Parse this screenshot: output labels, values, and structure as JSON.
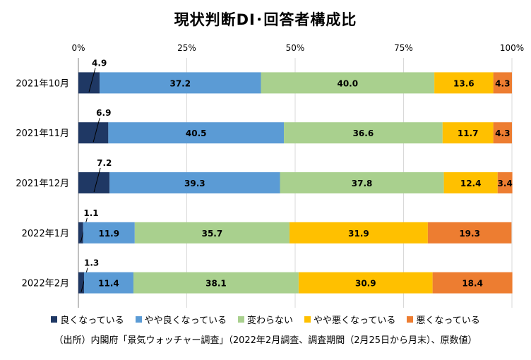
{
  "chart_data": {
    "type": "bar",
    "orientation": "horizontal",
    "stacked": true,
    "title": "現状判断DI･回答者構成比",
    "categories": [
      "2021年10月",
      "2021年11月",
      "2021年12月",
      "2022年1月",
      "2022年2月"
    ],
    "x_ticks": [
      "0%",
      "25%",
      "50%",
      "75%",
      "100%"
    ],
    "xlim": [
      0,
      100
    ],
    "x_axis_position": "top",
    "grid": true,
    "legend_position": "bottom",
    "series": [
      {
        "name": "良くなっている",
        "color": "#1f3864",
        "values": [
          4.9,
          6.9,
          7.2,
          1.1,
          1.3
        ],
        "labels": [
          "4.9",
          "6.9",
          "7.2",
          "1.1",
          "1.3"
        ]
      },
      {
        "name": "やや良くなっている",
        "color": "#5b9bd5",
        "values": [
          37.2,
          40.5,
          39.3,
          11.9,
          11.4
        ],
        "labels": [
          "37.2",
          "40.5",
          "39.3",
          "11.9",
          "11.4"
        ]
      },
      {
        "name": "変わらない",
        "color": "#a9d08e",
        "values": [
          40.0,
          36.6,
          37.8,
          35.7,
          38.1
        ],
        "labels": [
          "40.0",
          "36.6",
          "37.8",
          "35.7",
          "38.1"
        ]
      },
      {
        "name": "やや悪くなっている",
        "color": "#ffc000",
        "values": [
          13.6,
          11.7,
          12.4,
          31.9,
          30.9
        ],
        "labels": [
          "13.6",
          "11.7",
          "12.4",
          "31.9",
          "30.9"
        ]
      },
      {
        "name": "悪くなっている",
        "color": "#ed7d31",
        "values": [
          4.3,
          4.3,
          3.4,
          19.3,
          18.4
        ],
        "labels": [
          "4.3",
          "4.3",
          "3.4",
          "19.3",
          "18.4"
        ]
      }
    ]
  },
  "source_note": "（出所）内閣府「景気ウォッチャー調査」（2022年2月調査、調査期間（2月25日から月末）、原数値）"
}
